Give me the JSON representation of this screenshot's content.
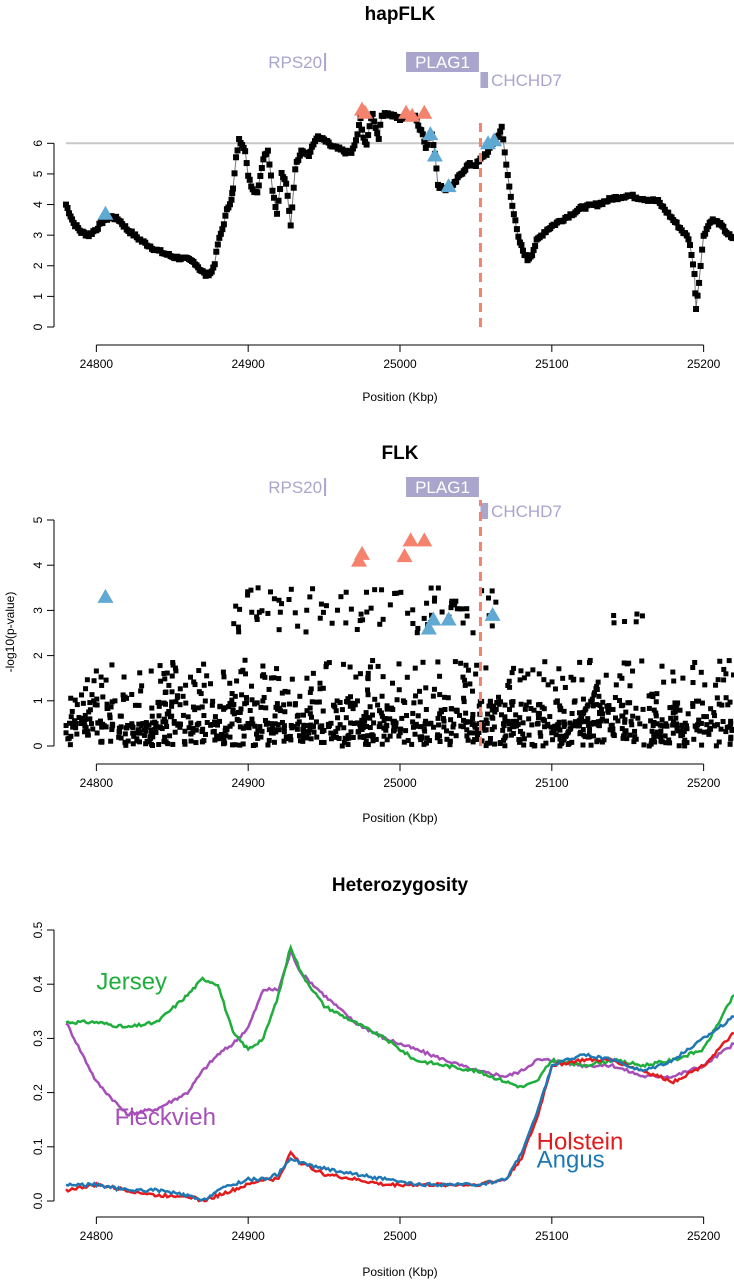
{
  "chart_data": [
    {
      "type": "scatter",
      "title": "hapFLK",
      "xlabel": "Position (Kbp)",
      "ylabel": "",
      "xlim": [
        24780,
        25220
      ],
      "ylim": [
        0,
        6.5
      ],
      "xticks": [
        "24800",
        "24900",
        "25000",
        "25100",
        "25200"
      ],
      "yticks": [
        "0",
        "1",
        "2",
        "3",
        "4",
        "5",
        "6"
      ],
      "threshold": 6,
      "vline_x": 25053,
      "genes": [
        {
          "name": "RPS20",
          "start": 24950,
          "end": 24951,
          "box": false
        },
        {
          "name": "PLAG1",
          "start": 25004,
          "end": 25052,
          "box": true
        },
        {
          "name": "CHCHD7",
          "start": 25053,
          "end": 25058,
          "box": true
        }
      ],
      "colors": {
        "points": "#000000",
        "threshold": "#c8c8c8",
        "vline": "#f4826d",
        "gene": "#a9a5cd",
        "salmon": "#f4826d",
        "blue": "#5fa9d2"
      },
      "curve_x": [
        24780,
        24785,
        24790,
        24795,
        24800,
        24805,
        24810,
        24815,
        24820,
        24830,
        24840,
        24850,
        24860,
        24865,
        24868,
        24872,
        24876,
        24878,
        24880,
        24883,
        24886,
        24889,
        24890,
        24892,
        24894,
        24896,
        24898,
        24900,
        24903,
        24906,
        24910,
        24913,
        24916,
        24919,
        24922,
        24925,
        24928,
        24931,
        24935,
        24940,
        24945,
        24950,
        24955,
        24960,
        24965,
        24968,
        24970,
        24972,
        24974,
        24976,
        24978,
        24980,
        24982,
        24984,
        24986,
        24988,
        24990,
        24995,
        25000,
        25005,
        25010,
        25013,
        25015,
        25017,
        25019,
        25021,
        25023,
        25025,
        25027,
        25030,
        25035,
        25040,
        25045,
        25050,
        25052,
        25055,
        25058,
        25061,
        25064,
        25067,
        25070,
        25072,
        25075,
        25078,
        25081,
        25084,
        25087,
        25090,
        25095,
        25100,
        25110,
        25120,
        25130,
        25140,
        25150,
        25160,
        25170,
        25180,
        25190,
        25192,
        25194,
        25195,
        25197,
        25200,
        25205,
        25210,
        25215,
        25220
      ],
      "curve_y": [
        4.0,
        3.4,
        3.1,
        3.0,
        3.2,
        3.5,
        3.6,
        3.5,
        3.2,
        2.8,
        2.5,
        2.3,
        2.2,
        2.1,
        1.9,
        1.7,
        1.8,
        2.1,
        2.7,
        3.2,
        3.8,
        4.2,
        4.5,
        5.5,
        6.1,
        6.0,
        5.8,
        4.9,
        4.5,
        4.4,
        5.5,
        5.8,
        4.5,
        3.7,
        5.0,
        4.7,
        3.3,
        5.2,
        5.8,
        5.6,
        6.2,
        6.1,
        5.9,
        5.8,
        5.7,
        5.7,
        5.9,
        6.3,
        6.8,
        6.2,
        5.9,
        6.6,
        7.0,
        6.5,
        6.2,
        6.9,
        7.0,
        6.9,
        6.8,
        6.9,
        6.9,
        6.5,
        6.3,
        5.8,
        6.2,
        6.3,
        5.7,
        4.6,
        4.6,
        4.5,
        4.6,
        5.0,
        5.3,
        5.3,
        5.4,
        5.6,
        5.7,
        6.0,
        6.2,
        6.5,
        5.3,
        4.6,
        3.7,
        2.9,
        2.5,
        2.2,
        2.4,
        2.8,
        3.1,
        3.3,
        3.6,
        3.9,
        4.0,
        4.2,
        4.3,
        4.2,
        4.1,
        3.5,
        2.9,
        2.4,
        1.7,
        0.6,
        1.5,
        3.0,
        3.5,
        3.4,
        3.1,
        2.8
      ],
      "triangles_salmon": [
        {
          "x": 24975,
          "y": 7.1
        },
        {
          "x": 24977,
          "y": 7.0
        },
        {
          "x": 25004,
          "y": 7.0
        },
        {
          "x": 25008,
          "y": 6.9
        },
        {
          "x": 25016,
          "y": 7.0
        }
      ],
      "triangles_blue": [
        {
          "x": 24806,
          "y": 3.7
        },
        {
          "x": 25020,
          "y": 6.3
        },
        {
          "x": 25023,
          "y": 5.6
        },
        {
          "x": 25032,
          "y": 4.6
        },
        {
          "x": 25058,
          "y": 6.0
        },
        {
          "x": 25062,
          "y": 6.1
        }
      ]
    },
    {
      "type": "scatter",
      "title": "FLK",
      "xlabel": "Position (Kbp)",
      "ylabel": "-log10(p-value)",
      "xlim": [
        24780,
        25220
      ],
      "ylim": [
        0,
        5
      ],
      "xticks": [
        "24800",
        "24900",
        "25000",
        "25100",
        "25200"
      ],
      "yticks": [
        "0",
        "1",
        "2",
        "3",
        "4",
        "5"
      ],
      "vline_x": 25053,
      "genes": [
        {
          "name": "RPS20",
          "start": 24950,
          "end": 24951,
          "box": false
        },
        {
          "name": "PLAG1",
          "start": 25004,
          "end": 25052,
          "box": true
        },
        {
          "name": "CHCHD7",
          "start": 25053,
          "end": 25058,
          "box": true
        }
      ],
      "colors": {
        "points": "#000000",
        "vline": "#f4826d",
        "gene": "#a9a5cd",
        "salmon": "#f4826d",
        "blue": "#5fa9d2"
      },
      "point_bands": [
        {
          "x": [
            24780,
            25220
          ],
          "ymin": 0.0,
          "ymax": 0.55
        },
        {
          "x": [
            24780,
            25220
          ],
          "ymin": 0.4,
          "ymax": 1.0
        },
        {
          "x": [
            24780,
            25220
          ],
          "ymin": 0.9,
          "ymax": 1.9
        },
        {
          "x": [
            24890,
            25070
          ],
          "ymin": 2.5,
          "ymax": 3.5
        },
        {
          "x": [
            25140,
            25160
          ],
          "ymin": 2.6,
          "ymax": 3.0
        }
      ],
      "triangles_salmon": [
        {
          "x": 24973,
          "y": 4.1
        },
        {
          "x": 24975,
          "y": 4.25
        },
        {
          "x": 25003,
          "y": 4.2
        },
        {
          "x": 25007,
          "y": 4.55
        },
        {
          "x": 25016,
          "y": 4.55
        }
      ],
      "triangles_blue": [
        {
          "x": 24806,
          "y": 3.3
        },
        {
          "x": 25019,
          "y": 2.6
        },
        {
          "x": 25022,
          "y": 2.8
        },
        {
          "x": 25032,
          "y": 2.8
        },
        {
          "x": 25061,
          "y": 2.9
        }
      ]
    },
    {
      "type": "line",
      "title": "Heterozygosity",
      "xlabel": "Position (Kbp)",
      "ylabel": "",
      "xlim": [
        24780,
        25220
      ],
      "ylim": [
        0,
        0.5
      ],
      "xticks": [
        "24800",
        "24900",
        "25000",
        "25100",
        "25200"
      ],
      "yticks": [
        "0.0",
        "0.1",
        "0.2",
        "0.3",
        "0.4",
        "0.5"
      ],
      "x": [
        24780,
        24800,
        24820,
        24840,
        24860,
        24870,
        24880,
        24890,
        24900,
        24910,
        24920,
        24928,
        24935,
        24950,
        24970,
        24990,
        25010,
        25030,
        25050,
        25070,
        25080,
        25090,
        25100,
        25120,
        25140,
        25160,
        25180,
        25200,
        25210,
        25220
      ],
      "series": [
        {
          "name": "Jersey",
          "color": "#1fae3c",
          "label_x": 24800,
          "label_y": 0.39,
          "values": [
            0.33,
            0.33,
            0.32,
            0.33,
            0.38,
            0.41,
            0.4,
            0.31,
            0.28,
            0.3,
            0.38,
            0.47,
            0.42,
            0.36,
            0.33,
            0.3,
            0.26,
            0.25,
            0.24,
            0.22,
            0.21,
            0.22,
            0.26,
            0.25,
            0.26,
            0.25,
            0.26,
            0.28,
            0.33,
            0.38
          ]
        },
        {
          "name": "Fleckvieh",
          "color": "#a64fb8",
          "label_x": 24812,
          "label_y": 0.14,
          "values": [
            0.33,
            0.22,
            0.16,
            0.17,
            0.2,
            0.24,
            0.27,
            0.29,
            0.32,
            0.39,
            0.39,
            0.46,
            0.42,
            0.38,
            0.33,
            0.3,
            0.28,
            0.26,
            0.24,
            0.23,
            0.24,
            0.26,
            0.26,
            0.25,
            0.25,
            0.23,
            0.23,
            0.25,
            0.27,
            0.29
          ]
        },
        {
          "name": "Holstein",
          "color": "#e41a1c",
          "label_x": 25090,
          "label_y": 0.095,
          "values": [
            0.02,
            0.03,
            0.02,
            0.01,
            0.01,
            0.0,
            0.01,
            0.02,
            0.03,
            0.04,
            0.04,
            0.09,
            0.07,
            0.05,
            0.04,
            0.03,
            0.03,
            0.03,
            0.03,
            0.04,
            0.08,
            0.15,
            0.25,
            0.26,
            0.26,
            0.24,
            0.22,
            0.25,
            0.28,
            0.31
          ]
        },
        {
          "name": "Angus",
          "color": "#1f78b4",
          "label_x": 25090,
          "label_y": 0.062,
          "values": [
            0.03,
            0.03,
            0.02,
            0.02,
            0.01,
            0.0,
            0.02,
            0.03,
            0.04,
            0.04,
            0.05,
            0.08,
            0.07,
            0.06,
            0.05,
            0.04,
            0.03,
            0.03,
            0.03,
            0.04,
            0.09,
            0.16,
            0.25,
            0.27,
            0.26,
            0.24,
            0.26,
            0.3,
            0.32,
            0.34
          ]
        }
      ]
    }
  ]
}
